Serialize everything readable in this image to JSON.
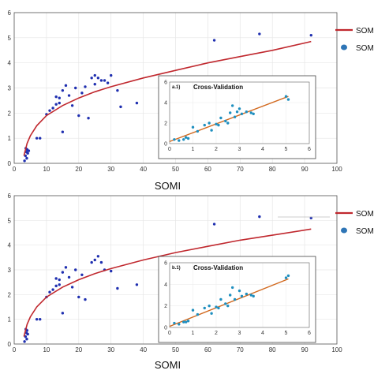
{
  "chart_data": [
    {
      "type": "scatter",
      "xlabel": "SOMI",
      "xlim": [
        0,
        100
      ],
      "ylim": [
        0,
        6
      ],
      "xticks": [
        "0",
        "10",
        "20",
        "30",
        "40",
        "50",
        "60",
        "70",
        "80",
        "90",
        "100"
      ],
      "yticks": [
        "0",
        "1",
        "2",
        "3",
        "4",
        "5",
        "6"
      ],
      "grid": true,
      "legend": {
        "placement": "right",
        "entries": [
          "SOMI",
          "SOMI"
        ]
      },
      "colors": {
        "points": "#1f2fb0",
        "curve": "#c0282e",
        "axis": "#555555"
      },
      "series": [
        {
          "kind": "points",
          "x": [
            3.2,
            3.5,
            3.8,
            4.0,
            3.6,
            4.2,
            3.9,
            4.5,
            7,
            8,
            10,
            11,
            12,
            13,
            13,
            14,
            14,
            15,
            15,
            16,
            17,
            18,
            19,
            20,
            21,
            22,
            23,
            24,
            25,
            25,
            26,
            27,
            28,
            29,
            30,
            32,
            33,
            38,
            62,
            76,
            92
          ],
          "y": [
            0.1,
            0.3,
            0.45,
            0.55,
            0.6,
            0.4,
            0.2,
            0.5,
            1.0,
            1.0,
            1.95,
            2.1,
            2.2,
            2.35,
            2.65,
            2.4,
            2.6,
            2.9,
            1.25,
            3.1,
            2.7,
            2.3,
            3.0,
            1.9,
            2.8,
            3.05,
            1.8,
            3.4,
            3.15,
            3.5,
            3.4,
            3.3,
            3.3,
            3.2,
            3.5,
            2.9,
            2.25,
            2.4,
            4.9,
            5.15,
            5.1
          ]
        },
        {
          "kind": "curve",
          "x": [
            3,
            4,
            5,
            7,
            10,
            15,
            20,
            25,
            30,
            40,
            50,
            60,
            70,
            80,
            92
          ],
          "y": [
            0.3,
            0.8,
            1.1,
            1.5,
            1.9,
            2.3,
            2.6,
            2.85,
            3.05,
            3.4,
            3.7,
            4.0,
            4.25,
            4.5,
            4.85
          ]
        }
      ],
      "inset": {
        "tag": "a.1)",
        "title": "Cross-Validation",
        "xlim": [
          0,
          6
        ],
        "ylim": [
          0,
          6
        ],
        "xticks": [
          "0",
          "1",
          "2",
          "3",
          "4",
          "5",
          "6"
        ],
        "yticks": [
          "0",
          "2",
          "4",
          "6"
        ],
        "line": {
          "x": [
            0,
            5.1
          ],
          "y": [
            0.2,
            4.6
          ]
        },
        "points": {
          "x": [
            0.2,
            0.4,
            0.6,
            0.7,
            0.8,
            1.0,
            1.2,
            1.5,
            1.7,
            1.8,
            2.0,
            2.1,
            2.2,
            2.4,
            2.5,
            2.6,
            2.8,
            3.0,
            3.1,
            3.3,
            3.5,
            3.6,
            2.7,
            2.9,
            5.0,
            5.1
          ],
          "y": [
            0.4,
            0.3,
            0.4,
            0.6,
            0.5,
            1.6,
            1.2,
            1.8,
            2.0,
            1.3,
            1.9,
            1.8,
            2.5,
            2.2,
            2.0,
            3.0,
            2.6,
            3.4,
            2.9,
            3.1,
            3.0,
            2.9,
            3.7,
            3.1,
            4.6,
            4.3
          ]
        }
      }
    },
    {
      "type": "scatter",
      "xlabel": "SOMI",
      "xlim": [
        0,
        100
      ],
      "ylim": [
        0,
        6
      ],
      "xticks": [
        "0",
        "10",
        "20",
        "30",
        "40",
        "50",
        "60",
        "70",
        "80",
        "90",
        "100"
      ],
      "yticks": [
        "0",
        "1",
        "2",
        "3",
        "4",
        "5",
        "6"
      ],
      "grid": true,
      "legend": {
        "placement": "right",
        "entries": [
          "SOM",
          "SOM"
        ]
      },
      "colors": {
        "points": "#1f2fb0",
        "curve": "#c0282e",
        "axis": "#555555"
      },
      "series": [
        {
          "kind": "points",
          "x": [
            3.2,
            3.5,
            3.8,
            4.0,
            3.6,
            4.2,
            3.9,
            7,
            8,
            10,
            11,
            12,
            13,
            13,
            14,
            14,
            15,
            15,
            16,
            17,
            18,
            19,
            20,
            21,
            22,
            24,
            25,
            26,
            27,
            28,
            30,
            32,
            38,
            62,
            76,
            92
          ],
          "y": [
            0.1,
            0.3,
            0.45,
            0.55,
            0.6,
            0.4,
            0.2,
            1.0,
            1.0,
            1.9,
            2.1,
            2.2,
            2.35,
            2.65,
            2.4,
            2.6,
            2.9,
            1.25,
            3.1,
            2.7,
            2.3,
            3.0,
            1.9,
            2.8,
            1.8,
            3.3,
            3.4,
            3.55,
            3.3,
            3.0,
            2.95,
            2.25,
            2.4,
            4.85,
            5.15,
            5.1
          ]
        },
        {
          "kind": "curve",
          "x": [
            3,
            4,
            5,
            7,
            10,
            15,
            20,
            25,
            30,
            40,
            50,
            60,
            70,
            80,
            92
          ],
          "y": [
            0.3,
            0.8,
            1.1,
            1.5,
            1.9,
            2.3,
            2.6,
            2.85,
            3.05,
            3.4,
            3.7,
            3.95,
            4.2,
            4.4,
            4.65
          ]
        }
      ],
      "inset": {
        "tag": "b.1)",
        "title": "Cross-Validation",
        "xlim": [
          0,
          6
        ],
        "ylim": [
          0,
          6
        ],
        "xticks": [
          "0",
          "1",
          "2",
          "3",
          "4",
          "5",
          "6"
        ],
        "yticks": [
          "0",
          "2",
          "4",
          "6"
        ],
        "line": {
          "x": [
            0,
            5.1
          ],
          "y": [
            0.1,
            4.5
          ]
        },
        "points": {
          "x": [
            0.2,
            0.4,
            0.6,
            0.7,
            0.8,
            1.0,
            1.2,
            1.5,
            1.7,
            1.8,
            2.0,
            2.1,
            2.2,
            2.4,
            2.5,
            2.6,
            2.8,
            3.0,
            3.1,
            3.3,
            3.5,
            3.6,
            2.7,
            5.0,
            5.1
          ],
          "y": [
            0.4,
            0.3,
            0.5,
            0.5,
            0.6,
            1.6,
            1.2,
            1.8,
            2.0,
            1.3,
            1.9,
            1.8,
            2.6,
            2.2,
            2.0,
            3.0,
            2.6,
            3.4,
            2.9,
            3.1,
            3.0,
            2.9,
            3.7,
            4.6,
            4.8
          ]
        }
      }
    }
  ]
}
